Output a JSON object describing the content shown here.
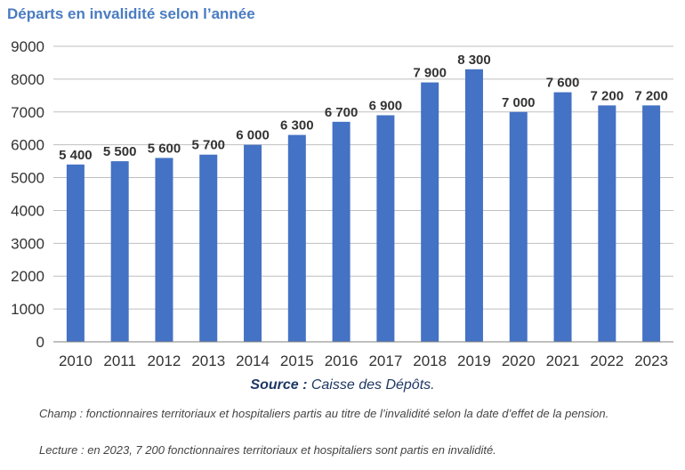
{
  "title": "Départs en invalidité selon l’année",
  "source_label": "Source :",
  "source_text": " Caisse des Dépôts.",
  "note_champ": "Champ : fonctionnaires territoriaux et hospitaliers partis au titre de l’invalidité selon la date d’effet de la pension.",
  "note_lecture": "Lecture : en 2023, 7 200 fonctionnaires territoriaux et hospitaliers sont partis en invalidité.",
  "colors": {
    "bar": "#4472c4",
    "title": "#4a7cc1",
    "grid": "#bfbfbf"
  },
  "chart_data": {
    "type": "bar",
    "title": "Départs en invalidité selon l’année",
    "categories": [
      "2010",
      "2011",
      "2012",
      "2013",
      "2014",
      "2015",
      "2016",
      "2017",
      "2018",
      "2019",
      "2020",
      "2021",
      "2022",
      "2023"
    ],
    "values": [
      5400,
      5500,
      5600,
      5700,
      6000,
      6300,
      6700,
      6900,
      7900,
      8300,
      7000,
      7600,
      7200,
      7200
    ],
    "data_labels": [
      "5 400",
      "5 500",
      "5 600",
      "5 700",
      "6 000",
      "6 300",
      "6 700",
      "6 900",
      "7 900",
      "8 300",
      "7 000",
      "7 600",
      "7 200",
      "7 200"
    ],
    "y_ticks": [
      "0",
      "1000",
      "2000",
      "3000",
      "4000",
      "5000",
      "6000",
      "7000",
      "8000",
      "9000"
    ],
    "ylim": [
      0,
      9000
    ],
    "xlabel": "",
    "ylabel": "",
    "grid": true,
    "legend": "none"
  }
}
